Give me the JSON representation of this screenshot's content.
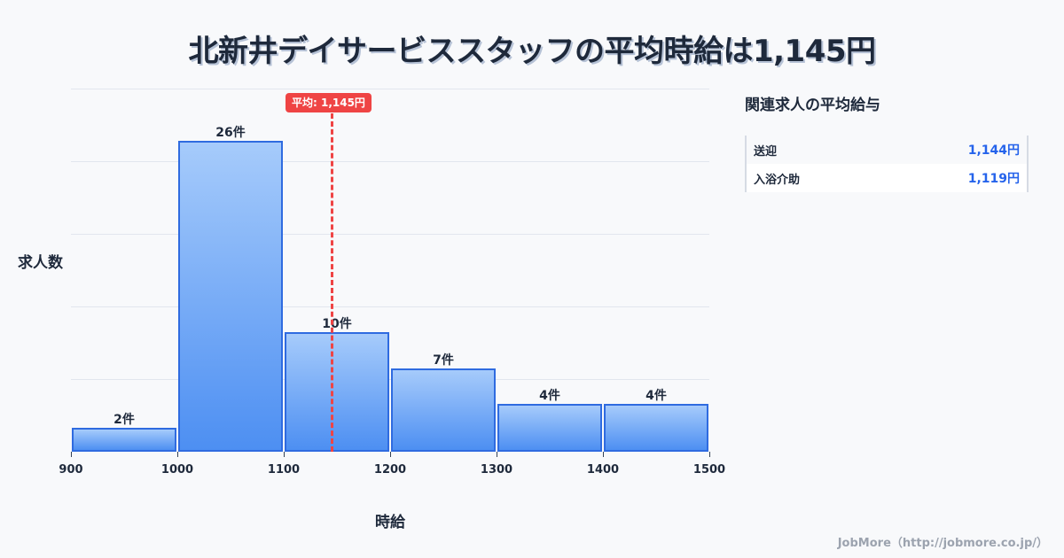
{
  "title": "北新井デイサービススタッフの平均時給は1,145円",
  "chart_data": {
    "type": "bar",
    "title": "北新井デイサービススタッフの平均時給は1,145円",
    "xlabel": "時給",
    "ylabel": "求人数",
    "categories": [
      "900-1000",
      "1000-1100",
      "1100-1200",
      "1200-1300",
      "1300-1400",
      "1400-1500"
    ],
    "bin_edges": [
      900,
      1000,
      1100,
      1200,
      1300,
      1400,
      1500
    ],
    "values": [
      2,
      26,
      10,
      7,
      4,
      4
    ],
    "value_labels": [
      "2件",
      "26件",
      "10件",
      "7件",
      "4件",
      "4件"
    ],
    "x_tick_labels": [
      "900",
      "1000",
      "1100",
      "1200",
      "1300",
      "1400",
      "1500"
    ],
    "xlim": [
      900,
      1500
    ],
    "ylim": [
      0,
      30.4
    ],
    "grid": true,
    "annotation": {
      "type": "vline",
      "x": 1145,
      "label": "平均: 1,145円",
      "color": "#ef4444"
    },
    "bar_color": "#4d8ff2",
    "bar_border_color": "#2f6be0"
  },
  "axis": {
    "ylabel": "求人数",
    "xlabel": "時給"
  },
  "average_badge": "平均: 1,145円",
  "related": {
    "title": "関連求人の平均給与",
    "rows": [
      {
        "name": "送迎",
        "value": "1,144円"
      },
      {
        "name": "入浴介助",
        "value": "1,119円"
      }
    ]
  },
  "footer": "JobMore（http://jobmore.co.jp/）"
}
